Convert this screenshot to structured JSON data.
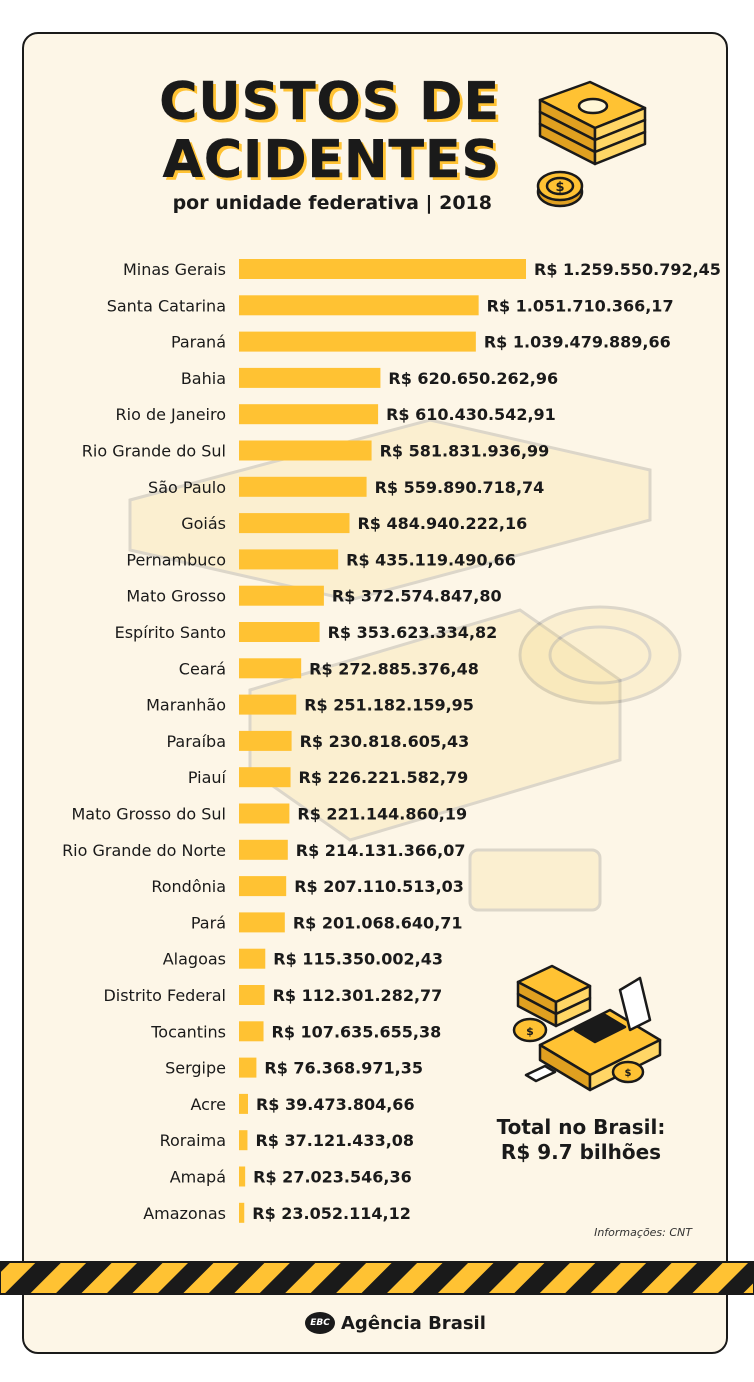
{
  "header": {
    "title_line1": "CUSTOS DE",
    "title_line2": "ACIDENTES",
    "subtitle": "por unidade federativa | 2018"
  },
  "total": {
    "label": "Total no Brasil:",
    "value": "R$ 9.7 bilhões"
  },
  "source": "Informações: CNT",
  "brand": {
    "logo_text": "EBC",
    "name": "Agência Brasil"
  },
  "colors": {
    "bar": "#ffc233",
    "background": "#fdf6e7",
    "text": "#1a1a1a"
  },
  "icons": [
    "money-stack-icon",
    "coin-icon",
    "card-machine-icon",
    "hazard-stripe"
  ],
  "chart_data": {
    "type": "bar",
    "orientation": "horizontal",
    "title": "CUSTOS DE ACIDENTES",
    "subtitle": "por unidade federativa | 2018",
    "categories": [
      "Minas Gerais",
      "Santa Catarina",
      "Paraná",
      "Bahia",
      "Rio de Janeiro",
      "Rio Grande do Sul",
      "São Paulo",
      "Goiás",
      "Pernambuco",
      "Mato Grosso",
      "Espírito Santo",
      "Ceará",
      "Maranhão",
      "Paraíba",
      "Piauí",
      "Mato Grosso do Sul",
      "Rio Grande do Norte",
      "Rondônia",
      "Pará",
      "Alagoas",
      "Distrito Federal",
      "Tocantins",
      "Sergipe",
      "Acre",
      "Roraima",
      "Amapá",
      "Amazonas"
    ],
    "values": [
      1259550792.45,
      1051710366.17,
      1039479889.66,
      620650262.96,
      610430542.91,
      581831936.99,
      559890718.74,
      484940222.16,
      435119490.66,
      372574847.8,
      353623334.82,
      272885376.48,
      251182159.95,
      230818605.43,
      226221582.79,
      221144860.19,
      214131366.07,
      207110513.03,
      201068640.71,
      115350002.43,
      112301282.77,
      107635655.38,
      76368971.35,
      39473804.66,
      37121433.08,
      27023546.36,
      23052114.12
    ],
    "labels": [
      "R$ 1.259.550.792,45",
      "R$ 1.051.710.366,17",
      "R$ 1.039.479.889,66",
      "R$ 620.650.262,96",
      "R$ 610.430.542,91",
      "R$ 581.831.936,99",
      "R$ 559.890.718,74",
      "R$ 484.940.222,16",
      "R$ 435.119.490,66",
      "R$ 372.574.847,80",
      "R$ 353.623.334,82",
      "R$ 272.885.376,48",
      "R$ 251.182.159,95",
      "R$ 230.818.605,43",
      "R$ 226.221.582,79",
      "R$ 221.144.860,19",
      "R$ 214.131.366,07",
      "R$ 207.110.513,03",
      "R$ 201.068.640,71",
      "R$ 115.350.002,43",
      "R$ 112.301.282,77",
      "R$ 107.635.655,38",
      "R$ 76.368.971,35",
      "R$ 39.473.804,66",
      "R$ 37.121.433,08",
      "R$ 27.023.546,36",
      "R$ 23.052.114,12"
    ],
    "xlabel": "",
    "ylabel": "",
    "grid": false,
    "legend": "none"
  }
}
